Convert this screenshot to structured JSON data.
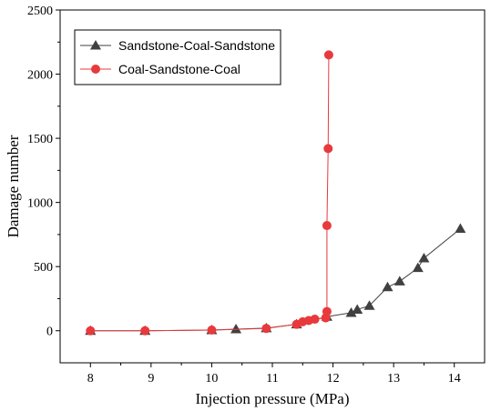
{
  "chart_data": {
    "type": "line",
    "xlabel": "Injection pressure (MPa)",
    "ylabel": "Damage number",
    "xlim": [
      7.5,
      14.5
    ],
    "ylim": [
      -250,
      2500
    ],
    "xticks": [
      8,
      9,
      10,
      11,
      12,
      13,
      14
    ],
    "yticks": [
      0,
      500,
      1000,
      1500,
      2000,
      2500
    ],
    "grid": false,
    "legend": "top-left",
    "series": [
      {
        "name": "Sandstone-Coal-Sandstone",
        "marker": "triangle",
        "color": "#404040",
        "x": [
          8.0,
          8.9,
          10.0,
          10.4,
          10.9,
          11.4,
          11.9,
          12.3,
          12.4,
          12.6,
          12.9,
          13.1,
          13.4,
          13.5,
          14.1
        ],
        "y": [
          0,
          0,
          5,
          12,
          20,
          50,
          110,
          140,
          165,
          195,
          340,
          385,
          490,
          565,
          795
        ]
      },
      {
        "name": "Coal-Sandstone-Coal",
        "marker": "circle",
        "color": "#e8393c",
        "x": [
          8.0,
          8.9,
          10.0,
          10.9,
          11.4,
          11.5,
          11.6,
          11.7,
          11.88,
          11.9,
          11.9,
          11.92,
          11.93
        ],
        "y": [
          0,
          0,
          5,
          18,
          50,
          70,
          80,
          90,
          100,
          150,
          820,
          1420,
          2150
        ]
      }
    ]
  }
}
